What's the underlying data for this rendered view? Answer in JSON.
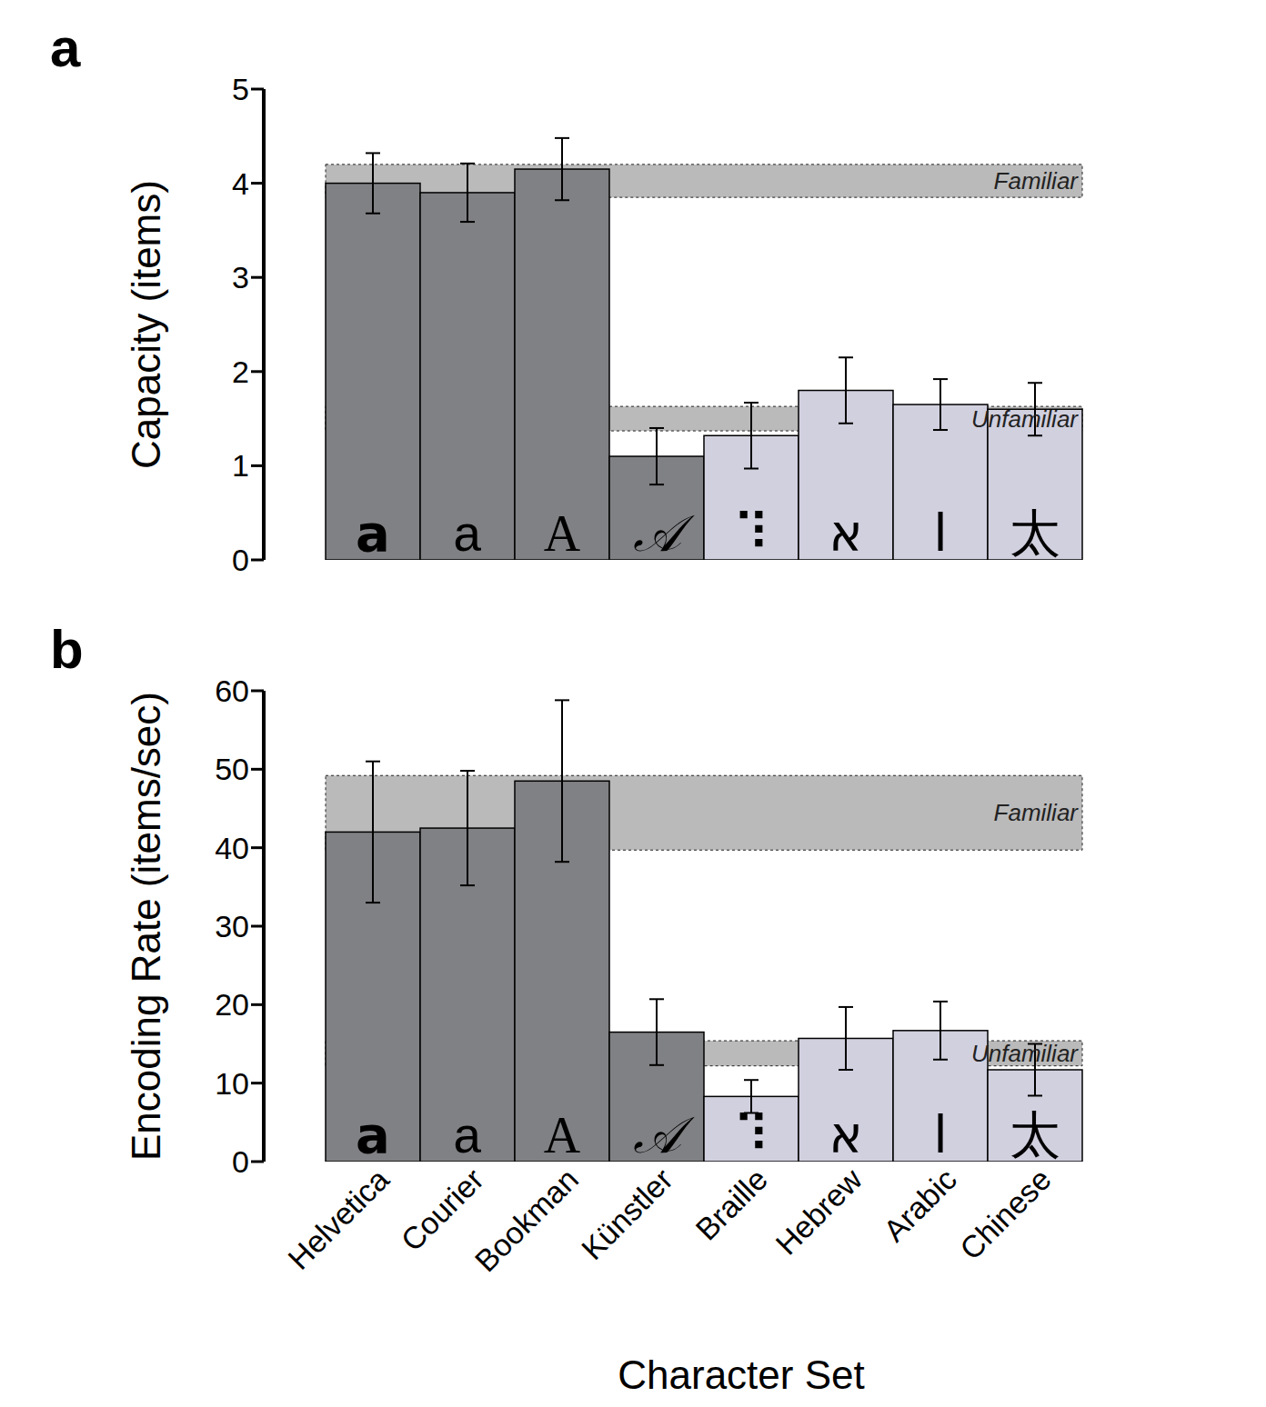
{
  "chart_data": [
    {
      "type": "bar",
      "panel": "a",
      "y_label": "Capacity (items)",
      "categories": [
        "Helvetica",
        "Courier",
        "Bookman",
        "Künstler",
        "Braille",
        "Hebrew",
        "Arabic",
        "Chinese"
      ],
      "values": [
        4.0,
        3.9,
        4.15,
        1.1,
        1.32,
        1.8,
        1.65,
        1.6
      ],
      "errors": [
        0.32,
        0.31,
        0.33,
        0.3,
        0.35,
        0.35,
        0.27,
        0.28
      ],
      "colors": [
        "#808184",
        "#808184",
        "#808184",
        "#808184",
        "#d1d0df",
        "#d1d0df",
        "#d1d0df",
        "#d1d0df"
      ],
      "glyphs": [
        "a",
        "a",
        "A",
        "𝒜",
        "⠹",
        "א",
        "ا",
        "太"
      ],
      "ylim": [
        0,
        5
      ],
      "yticks": [
        0,
        1,
        2,
        3,
        4,
        5
      ],
      "bands": [
        {
          "label": "Familiar",
          "range": [
            3.85,
            4.2
          ]
        },
        {
          "label": "Unfamiliar",
          "range": [
            1.37,
            1.63
          ]
        }
      ],
      "tick_labels": "y"
    },
    {
      "type": "bar",
      "panel": "b",
      "y_label": "Encoding Rate (items/sec)",
      "x_label": "Character Set",
      "categories": [
        "Helvetica",
        "Courier",
        "Bookman",
        "Künstler",
        "Braille",
        "Hebrew",
        "Arabic",
        "Chinese"
      ],
      "values": [
        42.0,
        42.5,
        48.5,
        16.5,
        8.3,
        15.7,
        16.7,
        11.7
      ],
      "errors": [
        9.0,
        7.3,
        10.3,
        4.2,
        2.1,
        4.0,
        3.7,
        3.3
      ],
      "colors": [
        "#808184",
        "#808184",
        "#808184",
        "#808184",
        "#d1d0df",
        "#d1d0df",
        "#d1d0df",
        "#d1d0df"
      ],
      "glyphs": [
        "a",
        "a",
        "A",
        "𝒜",
        "⠹",
        "א",
        "ا",
        "太"
      ],
      "ylim": [
        0,
        60
      ],
      "yticks": [
        0,
        10,
        20,
        30,
        40,
        50,
        60
      ],
      "bands": [
        {
          "label": "Familiar",
          "range": [
            39.7,
            49.2
          ]
        },
        {
          "label": "Unfamiliar",
          "range": [
            12.2,
            15.4
          ]
        }
      ]
    }
  ]
}
